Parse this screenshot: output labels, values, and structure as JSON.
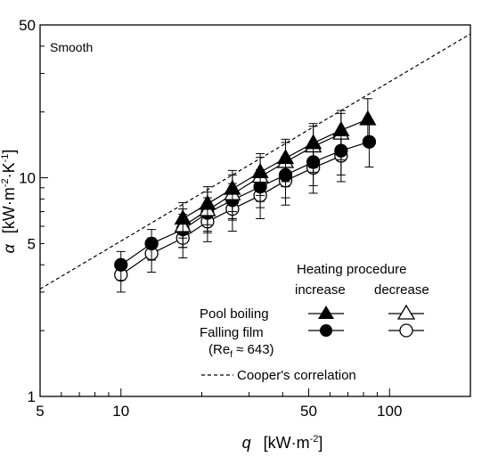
{
  "chart_data": {
    "type": "scatter",
    "annotation": "Smooth",
    "xlabel": {
      "symbol": "q",
      "unit_open": "[kW·m",
      "unit_exp": "-2",
      "unit_close": "]"
    },
    "ylabel": {
      "symbol": "α",
      "unit_open": "[kW·m",
      "unit_exp1": "-2",
      "unit_mid": "·K",
      "unit_exp2": "-1",
      "unit_close": "]"
    },
    "x_scale": "log",
    "y_scale": "log",
    "xlim": [
      5,
      200
    ],
    "ylim": [
      1,
      50
    ],
    "x_tick_values": [
      5,
      10,
      50,
      100
    ],
    "x_tick_labels": [
      "5",
      "10",
      "50",
      "100"
    ],
    "y_tick_values": [
      1,
      5,
      10,
      50
    ],
    "y_tick_labels": [
      "1",
      "5",
      "10",
      "50"
    ],
    "grid": false,
    "legend": {
      "header": "Heating procedure",
      "col_increase": "increase",
      "col_decrease": "decrease",
      "row_pool": "Pool boiling",
      "row_film": "Falling film",
      "re_prefix": "(Re",
      "re_sub": "f",
      "re_suffix": " ≈ 643)",
      "cooper": "Cooper's correlation",
      "placement": "bottom-right"
    },
    "series": [
      {
        "key": "pool_increase",
        "marker": "filled-triangle",
        "x": [
          17,
          21,
          26,
          33,
          41,
          52,
          66,
          83
        ],
        "y": [
          6.5,
          7.6,
          8.9,
          10.6,
          12.3,
          14.4,
          16.5,
          18.5
        ],
        "err": [
          1.2,
          1.5,
          1.9,
          2.3,
          2.7,
          3.3,
          3.8,
          4.5
        ]
      },
      {
        "key": "pool_decrease",
        "marker": "open-triangle",
        "x": [
          17,
          21,
          26,
          33,
          41,
          52,
          66
        ],
        "y": [
          6.0,
          7.1,
          8.4,
          10.1,
          11.8,
          13.9,
          15.9
        ],
        "err": [
          1.2,
          1.5,
          1.9,
          2.3,
          2.7,
          3.3,
          3.8
        ]
      },
      {
        "key": "film_increase",
        "marker": "filled-circle",
        "x": [
          10,
          13,
          17,
          21,
          26,
          33,
          41,
          52,
          66,
          84
        ],
        "y": [
          4.0,
          5.0,
          5.8,
          6.9,
          7.9,
          9.1,
          10.3,
          11.8,
          13.3,
          14.6
        ],
        "err": [
          0.6,
          0.8,
          1.0,
          1.2,
          1.5,
          1.8,
          2.2,
          2.6,
          3.0,
          3.4
        ]
      },
      {
        "key": "film_decrease",
        "marker": "open-circle",
        "x": [
          10,
          13,
          17,
          21,
          26,
          33,
          41,
          52,
          66
        ],
        "y": [
          3.6,
          4.5,
          5.3,
          6.3,
          7.2,
          8.3,
          9.7,
          11.1,
          12.6
        ],
        "err": [
          0.6,
          0.8,
          1.0,
          1.2,
          1.5,
          1.8,
          2.2,
          2.6,
          3.0
        ]
      }
    ],
    "cooper_line": {
      "x": [
        5,
        200
      ],
      "y": [
        3.1,
        45.5
      ],
      "style": "dashed"
    }
  }
}
